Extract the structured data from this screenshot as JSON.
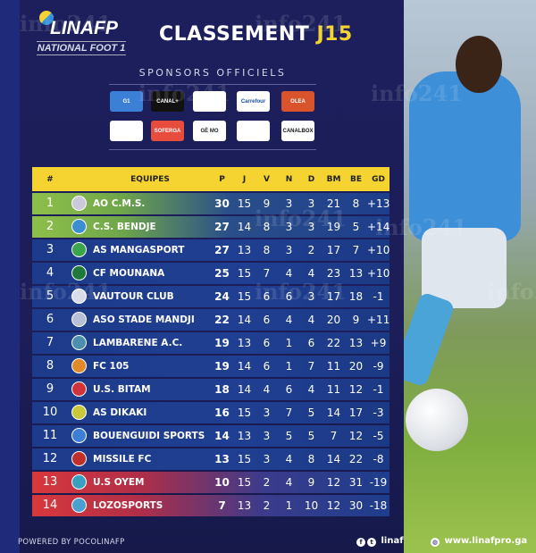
{
  "header": {
    "logo_name": "LINAFP",
    "logo_sub": "NATIONAL FOOT 1",
    "title_main": "CLASSEMENT",
    "title_round": "J15"
  },
  "sponsors": {
    "label": "SPONSORS OFFICIELS",
    "items": [
      {
        "name": "G1",
        "bg": "#3b7fd6",
        "fg": "#fff"
      },
      {
        "name": "CANAL+",
        "bg": "#111",
        "fg": "#fff"
      },
      {
        "name": "",
        "bg": "#fff",
        "fg": "#c33"
      },
      {
        "name": "Carrefour",
        "bg": "#fff",
        "fg": "#1c4fa0"
      },
      {
        "name": "OLEA",
        "bg": "#d9532c",
        "fg": "#fff"
      },
      {
        "name": "",
        "bg": "#fff",
        "fg": "#3b7fd6"
      },
      {
        "name": "SOFERGA",
        "bg": "#e74c3c",
        "fg": "#fff"
      },
      {
        "name": "GÈ MO",
        "bg": "#fff",
        "fg": "#222"
      },
      {
        "name": "",
        "bg": "#fff",
        "fg": "#c9a227"
      },
      {
        "name": "CANALBOX",
        "bg": "#fff",
        "fg": "#111"
      }
    ]
  },
  "table": {
    "columns": [
      "#",
      "EQUIPES",
      "P",
      "J",
      "V",
      "N",
      "D",
      "BM",
      "BE",
      "GD"
    ],
    "rows": [
      {
        "rank": "1",
        "team": "AO C.M.S.",
        "P": "30",
        "J": "15",
        "V": "9",
        "N": "3",
        "D": "3",
        "BM": "21",
        "BE": "8",
        "GD": "+13",
        "zone": "green",
        "logo_color": "#c9c9d9"
      },
      {
        "rank": "2",
        "team": "C.S. BENDJE",
        "P": "27",
        "J": "14",
        "V": "8",
        "N": "3",
        "D": "3",
        "BM": "19",
        "BE": "5",
        "GD": "+14",
        "zone": "green",
        "logo_color": "#3b8fd0"
      },
      {
        "rank": "3",
        "team": "AS MANGASPORT",
        "P": "27",
        "J": "13",
        "V": "8",
        "N": "3",
        "D": "2",
        "BM": "17",
        "BE": "7",
        "GD": "+10",
        "zone": "",
        "logo_color": "#3aa54a"
      },
      {
        "rank": "4",
        "team": "CF MOUNANA",
        "P": "25",
        "J": "15",
        "V": "7",
        "N": "4",
        "D": "4",
        "BM": "23",
        "BE": "13",
        "GD": "+10",
        "zone": "",
        "logo_color": "#1f7a3a"
      },
      {
        "rank": "5",
        "team": "VAUTOUR CLUB",
        "P": "24",
        "J": "15",
        "V": "6",
        "N": "6",
        "D": "3",
        "BM": "17",
        "BE": "18",
        "GD": "-1",
        "zone": "",
        "logo_color": "#d8dbe8"
      },
      {
        "rank": "6",
        "team": "ASO STADE MANDJI",
        "P": "22",
        "J": "14",
        "V": "6",
        "N": "4",
        "D": "4",
        "BM": "20",
        "BE": "9",
        "GD": "+11",
        "zone": "",
        "logo_color": "#b8c0d8"
      },
      {
        "rank": "7",
        "team": "LAMBARENE A.C.",
        "P": "19",
        "J": "13",
        "V": "6",
        "N": "1",
        "D": "6",
        "BM": "22",
        "BE": "13",
        "GD": "+9",
        "zone": "",
        "logo_color": "#4a8fb0"
      },
      {
        "rank": "8",
        "team": "FC 105",
        "P": "19",
        "J": "14",
        "V": "6",
        "N": "1",
        "D": "7",
        "BM": "11",
        "BE": "20",
        "GD": "-9",
        "zone": "",
        "logo_color": "#e08a2a"
      },
      {
        "rank": "9",
        "team": "U.S. BITAM",
        "P": "18",
        "J": "14",
        "V": "4",
        "N": "6",
        "D": "4",
        "BM": "11",
        "BE": "12",
        "GD": "-1",
        "zone": "",
        "logo_color": "#d0343a"
      },
      {
        "rank": "10",
        "team": "AS DIKAKI",
        "P": "16",
        "J": "15",
        "V": "3",
        "N": "7",
        "D": "5",
        "BM": "14",
        "BE": "17",
        "GD": "-3",
        "zone": "",
        "logo_color": "#c9c83a"
      },
      {
        "rank": "11",
        "team": "BOUENGUIDI  SPORTS",
        "P": "14",
        "J": "13",
        "V": "3",
        "N": "5",
        "D": "5",
        "BM": "7",
        "BE": "12",
        "GD": "-5",
        "zone": "",
        "logo_color": "#3b7fd6"
      },
      {
        "rank": "12",
        "team": "MISSILE FC",
        "P": "13",
        "J": "15",
        "V": "3",
        "N": "4",
        "D": "8",
        "BM": "14",
        "BE": "22",
        "GD": "-8",
        "zone": "",
        "logo_color": "#c0302a"
      },
      {
        "rank": "13",
        "team": "U.S OYEM",
        "P": "10",
        "J": "15",
        "V": "2",
        "N": "4",
        "D": "9",
        "BM": "12",
        "BE": "31",
        "GD": "-19",
        "zone": "red",
        "logo_color": "#3aa0c0"
      },
      {
        "rank": "14",
        "team": "LOZOSPORTS",
        "P": "7",
        "J": "13",
        "V": "2",
        "N": "1",
        "D": "10",
        "BM": "12",
        "BE": "30",
        "GD": "-18",
        "zone": "red",
        "logo_color": "#4aa0d0"
      }
    ]
  },
  "footer": {
    "powered": "POWERED BY POCOLINAFP",
    "social": "linaf",
    "website": "www.linafpro.ga"
  },
  "watermark": "info241",
  "colors": {
    "background": "#1a1d55",
    "header_yellow": "#f5d431",
    "row_blue": "#1e3d8c",
    "promotion_green": "#8fbf4a",
    "relegation_red": "#d8383c"
  }
}
